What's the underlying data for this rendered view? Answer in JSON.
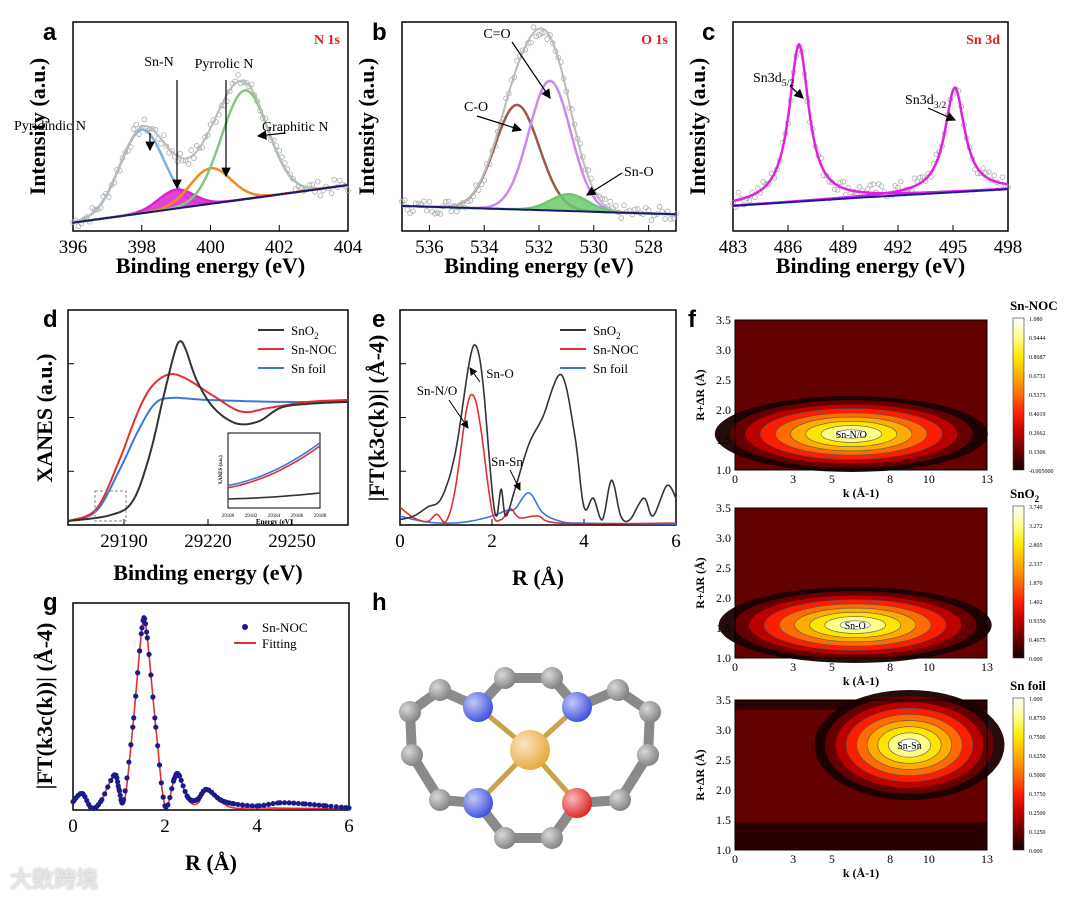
{
  "chart_data": [
    {
      "panel": "a",
      "type": "line",
      "title": "N 1s",
      "xlabel": "Binding energy (eV)",
      "ylabel": "Intensity (a.u.)",
      "xlim": [
        396,
        404
      ],
      "ylim": [
        0,
        1
      ],
      "xticks": [
        396,
        398,
        400,
        402,
        404
      ],
      "background": [
        [
          396,
          0.04
        ],
        [
          404,
          0.22
        ]
      ],
      "components": [
        {
          "name": "Pyridindic N",
          "center": 398.0,
          "height": 0.4,
          "fwhm": 1.5,
          "color": "#7fb2d8"
        },
        {
          "name": "Sn-N",
          "center": 399.0,
          "height": 0.09,
          "fwhm": 1.2,
          "color": "#e020d0",
          "fill": true
        },
        {
          "name": "Pyrrolic N",
          "center": 400.0,
          "height": 0.17,
          "fwhm": 1.4,
          "color": "#f08a1c"
        },
        {
          "name": "Graphitic N",
          "center": 401.0,
          "height": 0.52,
          "fwhm": 1.6,
          "color": "#7fc97f"
        }
      ]
    },
    {
      "panel": "b",
      "type": "line",
      "title": "O 1s",
      "xlabel": "Binding energy (eV)",
      "ylabel": "Intensity (a.u.)",
      "xlim": [
        537,
        527
      ],
      "ylim": [
        0,
        1
      ],
      "xticks": [
        536,
        534,
        532,
        530,
        528
      ],
      "background": [
        [
          537,
          0.12
        ],
        [
          527,
          0.08
        ]
      ],
      "components": [
        {
          "name": "C-O",
          "center": 532.8,
          "height": 0.5,
          "fwhm": 1.9,
          "color": "#9b5a4a"
        },
        {
          "name": "C=O",
          "center": 531.6,
          "height": 0.62,
          "fwhm": 1.8,
          "color": "#c88af0"
        },
        {
          "name": "Sn-O",
          "center": 530.9,
          "height": 0.08,
          "fwhm": 1.6,
          "color": "#6cc86c",
          "fill": true
        }
      ]
    },
    {
      "panel": "c",
      "type": "line",
      "title": "Sn 3d",
      "xlabel": "Binding energy (eV)",
      "ylabel": "Intensity (a.u.)",
      "xlim": [
        483,
        498
      ],
      "ylim": [
        0,
        1
      ],
      "xticks": [
        483,
        486,
        489,
        492,
        495,
        498
      ],
      "background": [
        [
          483,
          0.12
        ],
        [
          490,
          0.16
        ],
        [
          498,
          0.2
        ]
      ],
      "components": [
        {
          "name": "Sn3d5/2",
          "label_main": "Sn3d",
          "label_sub": "5/2",
          "center": 486.6,
          "height": 0.75,
          "fwhm": 1.3,
          "color": "#e020e0"
        },
        {
          "name": "Sn3d3/2",
          "label_main": "Sn3d",
          "label_sub": "3/2",
          "center": 495.1,
          "height": 0.5,
          "fwhm": 1.3,
          "color": "#e020e0"
        }
      ]
    },
    {
      "panel": "d",
      "type": "line",
      "xlabel": "Binding energy (eV)",
      "ylabel": "XANES (a.u.)",
      "xlim": [
        29170,
        29270
      ],
      "ylim": [
        0,
        1.1
      ],
      "xticks": [
        29190,
        29220,
        29250
      ],
      "series": [
        {
          "name": "SnO2",
          "label_main": "SnO",
          "label_sub": "2",
          "color": "#333333",
          "points": [
            [
              29170,
              0.02
            ],
            [
              29185,
              0.05
            ],
            [
              29193,
              0.12
            ],
            [
              29199,
              0.35
            ],
            [
              29204,
              0.65
            ],
            [
              29208,
              0.88
            ],
            [
              29210,
              0.94
            ],
            [
              29212,
              0.9
            ],
            [
              29216,
              0.74
            ],
            [
              29222,
              0.6
            ],
            [
              29230,
              0.52
            ],
            [
              29238,
              0.53
            ],
            [
              29246,
              0.6
            ],
            [
              29256,
              0.62
            ],
            [
              29270,
              0.63
            ]
          ]
        },
        {
          "name": "Sn-NOC",
          "color": "#e03030",
          "points": [
            [
              29170,
              0.02
            ],
            [
              29180,
              0.08
            ],
            [
              29188,
              0.32
            ],
            [
              29195,
              0.58
            ],
            [
              29200,
              0.71
            ],
            [
              29206,
              0.77
            ],
            [
              29212,
              0.75
            ],
            [
              29222,
              0.66
            ],
            [
              29232,
              0.58
            ],
            [
              29242,
              0.6
            ],
            [
              29256,
              0.63
            ],
            [
              29270,
              0.64
            ]
          ]
        },
        {
          "name": "Sn foil",
          "color": "#3a78d8",
          "points": [
            [
              29170,
              0.02
            ],
            [
              29180,
              0.07
            ],
            [
              29188,
              0.27
            ],
            [
              29195,
              0.48
            ],
            [
              29201,
              0.62
            ],
            [
              29207,
              0.65
            ],
            [
              29220,
              0.64
            ],
            [
              29245,
              0.63
            ],
            [
              29270,
              0.63
            ]
          ]
        }
      ],
      "inset": {
        "xlabel": "Energy (eV)",
        "ylabel": "XANES (a.u.)",
        "xticks": [
          29180,
          29182,
          29184,
          29186,
          29188
        ]
      }
    },
    {
      "panel": "e",
      "type": "line",
      "xlabel": "R (Å)",
      "ylabel": "|FT(k3c(k))| (Å-4)",
      "xlim": [
        0,
        6
      ],
      "ylim": [
        0,
        12
      ],
      "xticks": [
        0,
        2,
        4,
        6
      ],
      "annotations": [
        "Sn-O",
        "Sn-N/O",
        "Sn-Sn"
      ],
      "series": [
        {
          "name": "SnO2",
          "label_main": "SnO",
          "label_sub": "2",
          "color": "#333333",
          "points": [
            [
              0,
              0.3
            ],
            [
              0.3,
              0.5
            ],
            [
              0.6,
              1
            ],
            [
              0.9,
              1.5
            ],
            [
              1.2,
              4
            ],
            [
              1.5,
              9
            ],
            [
              1.65,
              10
            ],
            [
              1.8,
              8
            ],
            [
              2,
              2
            ],
            [
              2.1,
              0.5
            ],
            [
              2.2,
              2
            ],
            [
              2.3,
              0.5
            ],
            [
              2.5,
              2
            ],
            [
              2.8,
              4.5
            ],
            [
              3.1,
              6
            ],
            [
              3.5,
              8.4
            ],
            [
              3.8,
              5
            ],
            [
              4,
              1
            ],
            [
              4.2,
              1.5
            ],
            [
              4.4,
              0.3
            ],
            [
              4.6,
              2.5
            ],
            [
              4.8,
              0.5
            ],
            [
              5,
              0.3
            ],
            [
              5.3,
              1.5
            ],
            [
              5.5,
              0.5
            ],
            [
              5.8,
              2.2
            ],
            [
              6,
              1.5
            ]
          ]
        },
        {
          "name": "Sn-NOC",
          "color": "#e03030",
          "points": [
            [
              0,
              1
            ],
            [
              0.3,
              0.4
            ],
            [
              0.6,
              0.2
            ],
            [
              0.8,
              0.6
            ],
            [
              1,
              0.2
            ],
            [
              1.2,
              2
            ],
            [
              1.45,
              6.5
            ],
            [
              1.6,
              7.2
            ],
            [
              1.75,
              5.5
            ],
            [
              2,
              0.8
            ],
            [
              2.2,
              0.3
            ],
            [
              2.4,
              0.9
            ],
            [
              2.6,
              0.4
            ],
            [
              3,
              0.5
            ],
            [
              3.5,
              0.1
            ],
            [
              6,
              0.1
            ]
          ]
        },
        {
          "name": "Sn foil",
          "color": "#3a78d8",
          "points": [
            [
              0,
              0.5
            ],
            [
              0.5,
              0.2
            ],
            [
              1,
              0.1
            ],
            [
              1.5,
              0.2
            ],
            [
              2,
              0.5
            ],
            [
              2.3,
              0.8
            ],
            [
              2.5,
              0.9
            ],
            [
              2.8,
              1.8
            ],
            [
              3.1,
              0.7
            ],
            [
              3.5,
              0.2
            ],
            [
              4,
              0.1
            ],
            [
              6,
              0.05
            ]
          ]
        }
      ]
    },
    {
      "panel": "f",
      "type": "heatmap",
      "xlabel": "k (Å-1)",
      "ylabel": "R+ΔR (Å)",
      "xticks": [
        0,
        3,
        5,
        8,
        10,
        13
      ],
      "yticks": [
        1.0,
        1.5,
        2.0,
        2.5,
        3.0,
        3.5
      ],
      "xlim": [
        0,
        13
      ],
      "ylim": [
        1,
        3.5
      ],
      "maps": [
        {
          "name": "Sn-NOC",
          "peak_label": "Sn-N/O",
          "peak_k": 6,
          "peak_R": 1.6,
          "colorbar": [
            "1.080",
            "0.9444",
            "0.8087",
            "0.6731",
            "0.5375",
            "0.4019",
            "0.2662",
            "0.1306",
            "-0.005000"
          ]
        },
        {
          "name": "SnO2",
          "title_main": "SnO",
          "title_sub": "2",
          "peak_label": "Sn-O",
          "peak_k": 6.2,
          "peak_R": 1.55,
          "colorbar": [
            "3.740",
            "3.272",
            "2.805",
            "2.337",
            "1.870",
            "1.402",
            "0.9350",
            "0.4675",
            "0.000"
          ]
        },
        {
          "name": "Sn foil",
          "peak_label": "Sn-Sn",
          "peak_k": 9,
          "peak_R": 2.75,
          "colorbar": [
            "1.000",
            "0.8750",
            "0.7500",
            "0.6250",
            "0.5000",
            "0.3750",
            "0.2500",
            "0.1250",
            "0.000"
          ]
        }
      ]
    },
    {
      "panel": "g",
      "type": "scatter+line",
      "xlabel": "R (Å)",
      "ylabel": "|FT(k3c(k))| (Å-4)",
      "xlim": [
        0,
        6
      ],
      "ylim": [
        0,
        10
      ],
      "xticks": [
        0,
        2,
        4,
        6
      ],
      "series": [
        {
          "name": "Sn-NOC",
          "color": "#1a1a8a",
          "kind": "scatter",
          "points": [
            [
              0,
              0.4
            ],
            [
              0.2,
              0.8
            ],
            [
              0.4,
              0.1
            ],
            [
              0.6,
              0.4
            ],
            [
              0.9,
              1.7
            ],
            [
              1.0,
              1.0
            ],
            [
              1.1,
              0.5
            ],
            [
              1.3,
              4
            ],
            [
              1.5,
              8.8
            ],
            [
              1.6,
              8.6
            ],
            [
              1.8,
              4
            ],
            [
              2,
              0.2
            ],
            [
              2.2,
              1.5
            ],
            [
              2.3,
              1.7
            ],
            [
              2.5,
              0.6
            ],
            [
              2.7,
              0.5
            ],
            [
              2.9,
              1.0
            ],
            [
              3.2,
              0.5
            ],
            [
              3.5,
              0.3
            ],
            [
              4,
              0.2
            ],
            [
              4.5,
              0.35
            ],
            [
              5,
              0.3
            ],
            [
              5.5,
              0.2
            ],
            [
              6,
              0.1
            ]
          ]
        },
        {
          "name": "Fitting",
          "color": "#e03030",
          "kind": "line",
          "points": [
            [
              0,
              0.4
            ],
            [
              0.2,
              0.8
            ],
            [
              0.4,
              0.1
            ],
            [
              0.6,
              0.4
            ],
            [
              0.9,
              1.6
            ],
            [
              1.1,
              0.3
            ],
            [
              1.3,
              4
            ],
            [
              1.5,
              8.8
            ],
            [
              1.6,
              8.6
            ],
            [
              1.8,
              4
            ],
            [
              2,
              0.2
            ],
            [
              2.2,
              1.5
            ],
            [
              2.3,
              1.7
            ],
            [
              2.5,
              0.5
            ],
            [
              2.7,
              0.3
            ],
            [
              2.9,
              0.9
            ],
            [
              3.2,
              0.4
            ],
            [
              3.5,
              0.1
            ],
            [
              4,
              0.1
            ],
            [
              6,
              0.05
            ]
          ]
        }
      ]
    }
  ],
  "panel_labels": [
    "a",
    "b",
    "c",
    "d",
    "e",
    "f",
    "g",
    "h"
  ],
  "colors": {
    "annotation_red": "#e02020",
    "scatter_gray": "#aaaaaa"
  },
  "watermark": "大数跨境"
}
